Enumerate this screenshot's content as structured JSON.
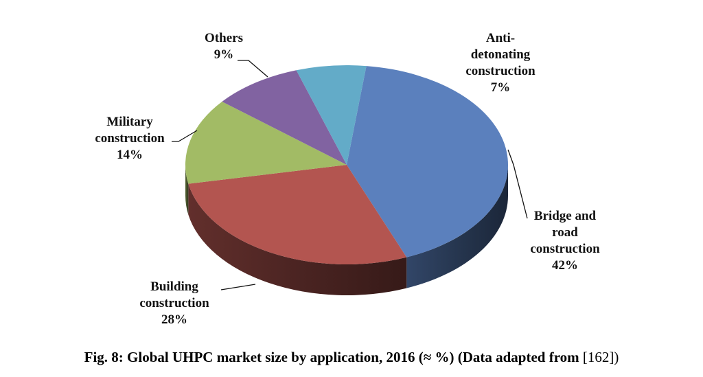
{
  "chart_data": {
    "type": "pie",
    "title": "",
    "categories": [
      "Bridge and road construction",
      "Building construction",
      "Military construction",
      "Others",
      "Anti-detonating construction"
    ],
    "values": [
      42,
      28,
      14,
      9,
      7
    ],
    "labels": [
      {
        "lines": [
          "Bridge and",
          "road",
          "construction"
        ],
        "pct": "42%"
      },
      {
        "lines": [
          "Building",
          "construction"
        ],
        "pct": "28%"
      },
      {
        "lines": [
          "Military",
          "construction"
        ],
        "pct": "14%"
      },
      {
        "lines": [
          "Others"
        ],
        "pct": "9%"
      },
      {
        "lines": [
          "Anti-",
          "detonating",
          "construction"
        ],
        "pct": "7%"
      }
    ],
    "colors": [
      "#5b80bd",
      "#b35550",
      "#a2bb65",
      "#8163a1",
      "#63abc8"
    ],
    "legend": "none",
    "style": "3d-pie"
  },
  "caption": {
    "bold": "Fig. 8: Global UHPC market size by application, 2016 (≈ %) (Data adapted from",
    "ref": "[162])"
  }
}
